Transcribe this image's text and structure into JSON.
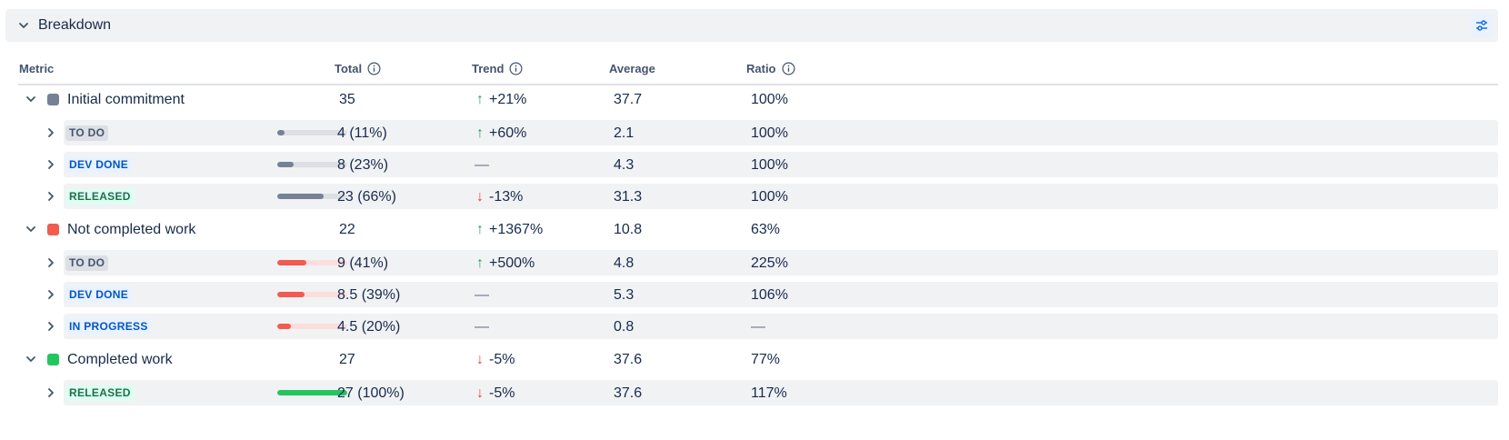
{
  "panel": {
    "title": "Breakdown",
    "settings_icon": "sliders-icon"
  },
  "columns": {
    "metric": "Metric",
    "total": "Total",
    "trend": "Trend",
    "average": "Average",
    "ratio": "Ratio"
  },
  "colors": {
    "initial": "#758195",
    "not_completed": "#f15b50",
    "completed": "#22c55e",
    "trend_up": "#22a06b",
    "trend_down": "#e2483d"
  },
  "rows": [
    {
      "type": "group",
      "label": "Initial commitment",
      "color": "#758195",
      "total": "35",
      "trend_dir": "up",
      "trend": "+21%",
      "average": "37.7",
      "ratio": "100%"
    },
    {
      "type": "sub",
      "status": "TO DO",
      "kind": "todo",
      "bar_fraction": 0.11,
      "bar_color": "#758195",
      "track": "#dcdfe4",
      "total": "4 (11%)",
      "trend_dir": "up",
      "trend": "+60%",
      "average": "2.1",
      "ratio": "100%"
    },
    {
      "type": "sub",
      "status": "DEV DONE",
      "kind": "dev",
      "bar_fraction": 0.23,
      "bar_color": "#758195",
      "track": "#dcdfe4",
      "total": "8 (23%)",
      "trend_dir": "none",
      "trend": "—",
      "average": "4.3",
      "ratio": "100%"
    },
    {
      "type": "sub",
      "status": "RELEASED",
      "kind": "rel",
      "bar_fraction": 0.66,
      "bar_color": "#758195",
      "track": "#dcdfe4",
      "total": "23 (66%)",
      "trend_dir": "down",
      "trend": "-13%",
      "average": "31.3",
      "ratio": "100%"
    },
    {
      "type": "group",
      "label": "Not completed work",
      "color": "#f15b50",
      "total": "22",
      "trend_dir": "up",
      "trend": "+1367%",
      "average": "10.8",
      "ratio": "63%"
    },
    {
      "type": "sub",
      "status": "TO DO",
      "kind": "todo",
      "bar_fraction": 0.41,
      "bar_color": "#f15b50",
      "track": "#fcdede",
      "total": "9 (41%)",
      "trend_dir": "up",
      "trend": "+500%",
      "average": "4.8",
      "ratio": "225%"
    },
    {
      "type": "sub",
      "status": "DEV DONE",
      "kind": "dev",
      "bar_fraction": 0.39,
      "bar_color": "#f15b50",
      "track": "#fcdede",
      "total": "8.5 (39%)",
      "trend_dir": "none",
      "trend": "—",
      "average": "5.3",
      "ratio": "106%"
    },
    {
      "type": "sub",
      "status": "IN PROGRESS",
      "kind": "prog",
      "bar_fraction": 0.2,
      "bar_color": "#f15b50",
      "track": "#fcdede",
      "total": "4.5 (20%)",
      "trend_dir": "none",
      "trend": "—",
      "average": "0.8",
      "ratio": "—"
    },
    {
      "type": "group",
      "label": "Completed work",
      "color": "#22c55e",
      "total": "27",
      "trend_dir": "down",
      "trend": "-5%",
      "average": "37.6",
      "ratio": "77%"
    },
    {
      "type": "sub",
      "status": "RELEASED",
      "kind": "rel",
      "bar_fraction": 1.0,
      "bar_color": "#22c55e",
      "track": "#dcfff1",
      "total": "27 (100%)",
      "trend_dir": "down",
      "trend": "-5%",
      "average": "37.6",
      "ratio": "117%"
    }
  ]
}
